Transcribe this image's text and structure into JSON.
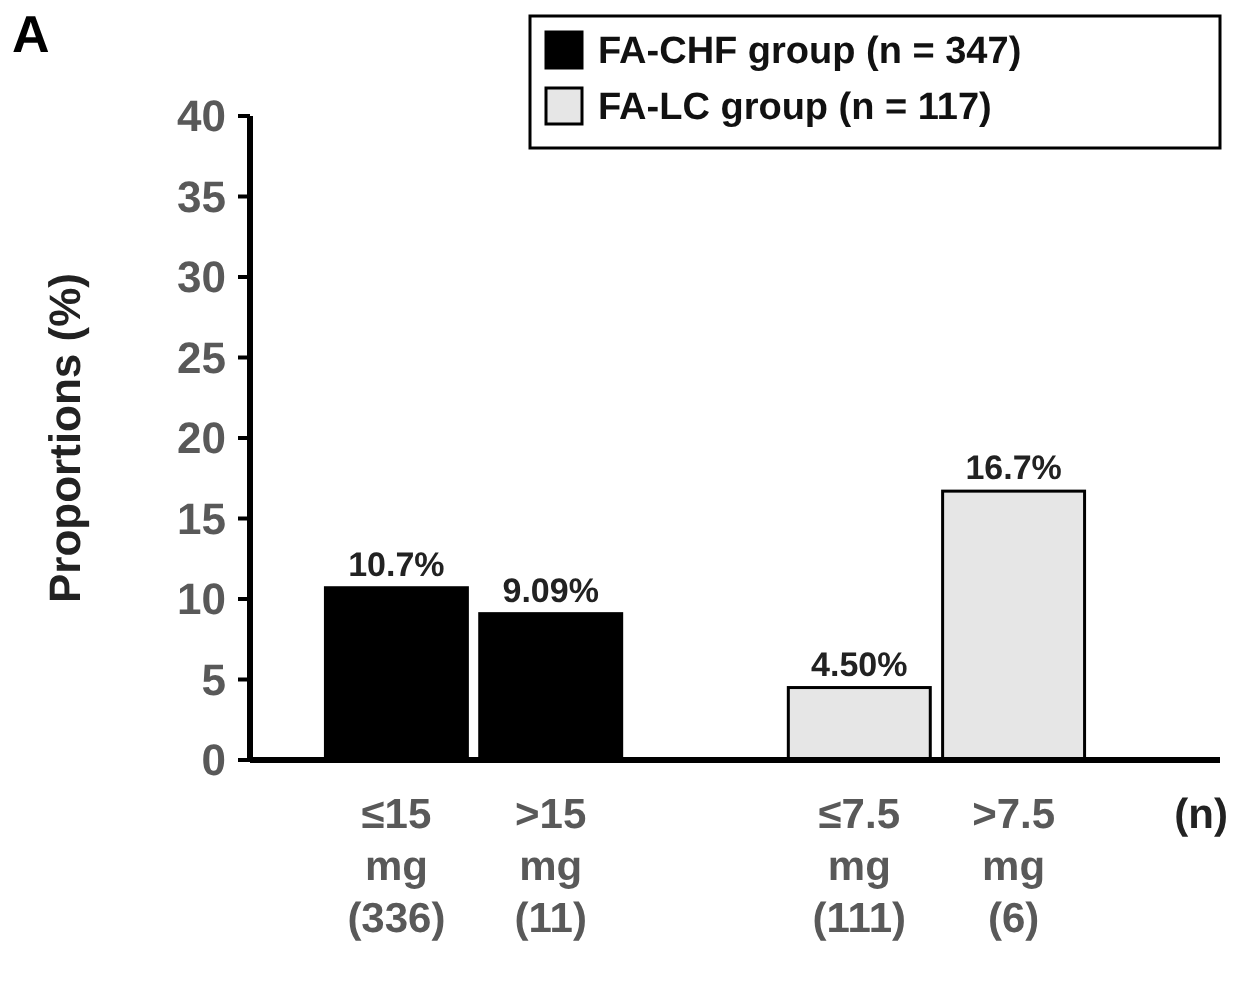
{
  "chart_data": {
    "type": "bar",
    "title": "A",
    "ylabel": "Proportions (%)",
    "xlabel": "(n)",
    "categories": [
      "≤15\nmg\n(336)",
      ">15\nmg\n(11)",
      null,
      "≤7.5\nmg\n(111)",
      ">7.5\nmg\n(6)"
    ],
    "series": [
      {
        "name": "FA-CHF group (n = 347)",
        "color": "#000000",
        "values": [
          10.7,
          9.09,
          null,
          null,
          null
        ],
        "value_labels": [
          "10.7%",
          "9.09%",
          null,
          null,
          null
        ]
      },
      {
        "name": "FA-LC group (n = 117)",
        "color": "#e6e6e6",
        "values": [
          null,
          null,
          null,
          4.5,
          16.7
        ],
        "value_labels": [
          null,
          null,
          null,
          "4.50%",
          "16.7%"
        ]
      }
    ],
    "ylim": [
      0,
      40
    ],
    "yticks": [
      0,
      5,
      10,
      15,
      20,
      25,
      30,
      35,
      40
    ],
    "legend": "top right",
    "grid": false
  }
}
